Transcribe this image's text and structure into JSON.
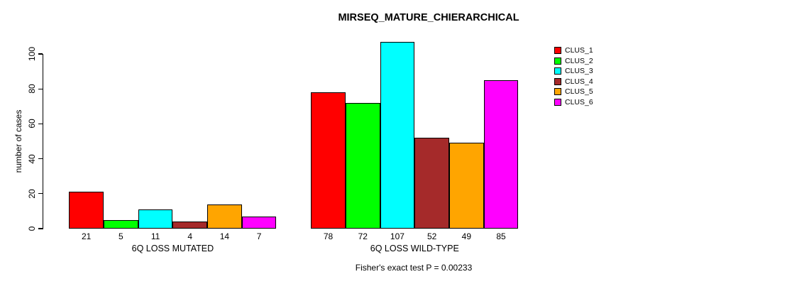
{
  "chart_data": {
    "type": "bar",
    "title": "MIRSEQ_MATURE_CHIERARCHICAL",
    "ylabel": "number of cases",
    "xlabel": "",
    "ylim": [
      0,
      107
    ],
    "yticks": [
      0,
      20,
      40,
      60,
      80,
      100
    ],
    "grid": false,
    "legend_position": "top-right",
    "categories": [
      "6Q LOSS MUTATED",
      "6Q LOSS WILD-TYPE"
    ],
    "series": [
      {
        "name": "CLUS_1",
        "color": "#FF0000",
        "values": [
          21,
          78
        ]
      },
      {
        "name": "CLUS_2",
        "color": "#00FF00",
        "values": [
          5,
          72
        ]
      },
      {
        "name": "CLUS_3",
        "color": "#00FFFF",
        "values": [
          11,
          107
        ]
      },
      {
        "name": "CLUS_4",
        "color": "#A52A2A",
        "values": [
          4,
          52
        ]
      },
      {
        "name": "CLUS_5",
        "color": "#FFA500",
        "values": [
          14,
          49
        ]
      },
      {
        "name": "CLUS_6",
        "color": "#FF00FF",
        "values": [
          7,
          85
        ]
      }
    ],
    "footnote": "Fisher's exact test P = 0.00233"
  }
}
